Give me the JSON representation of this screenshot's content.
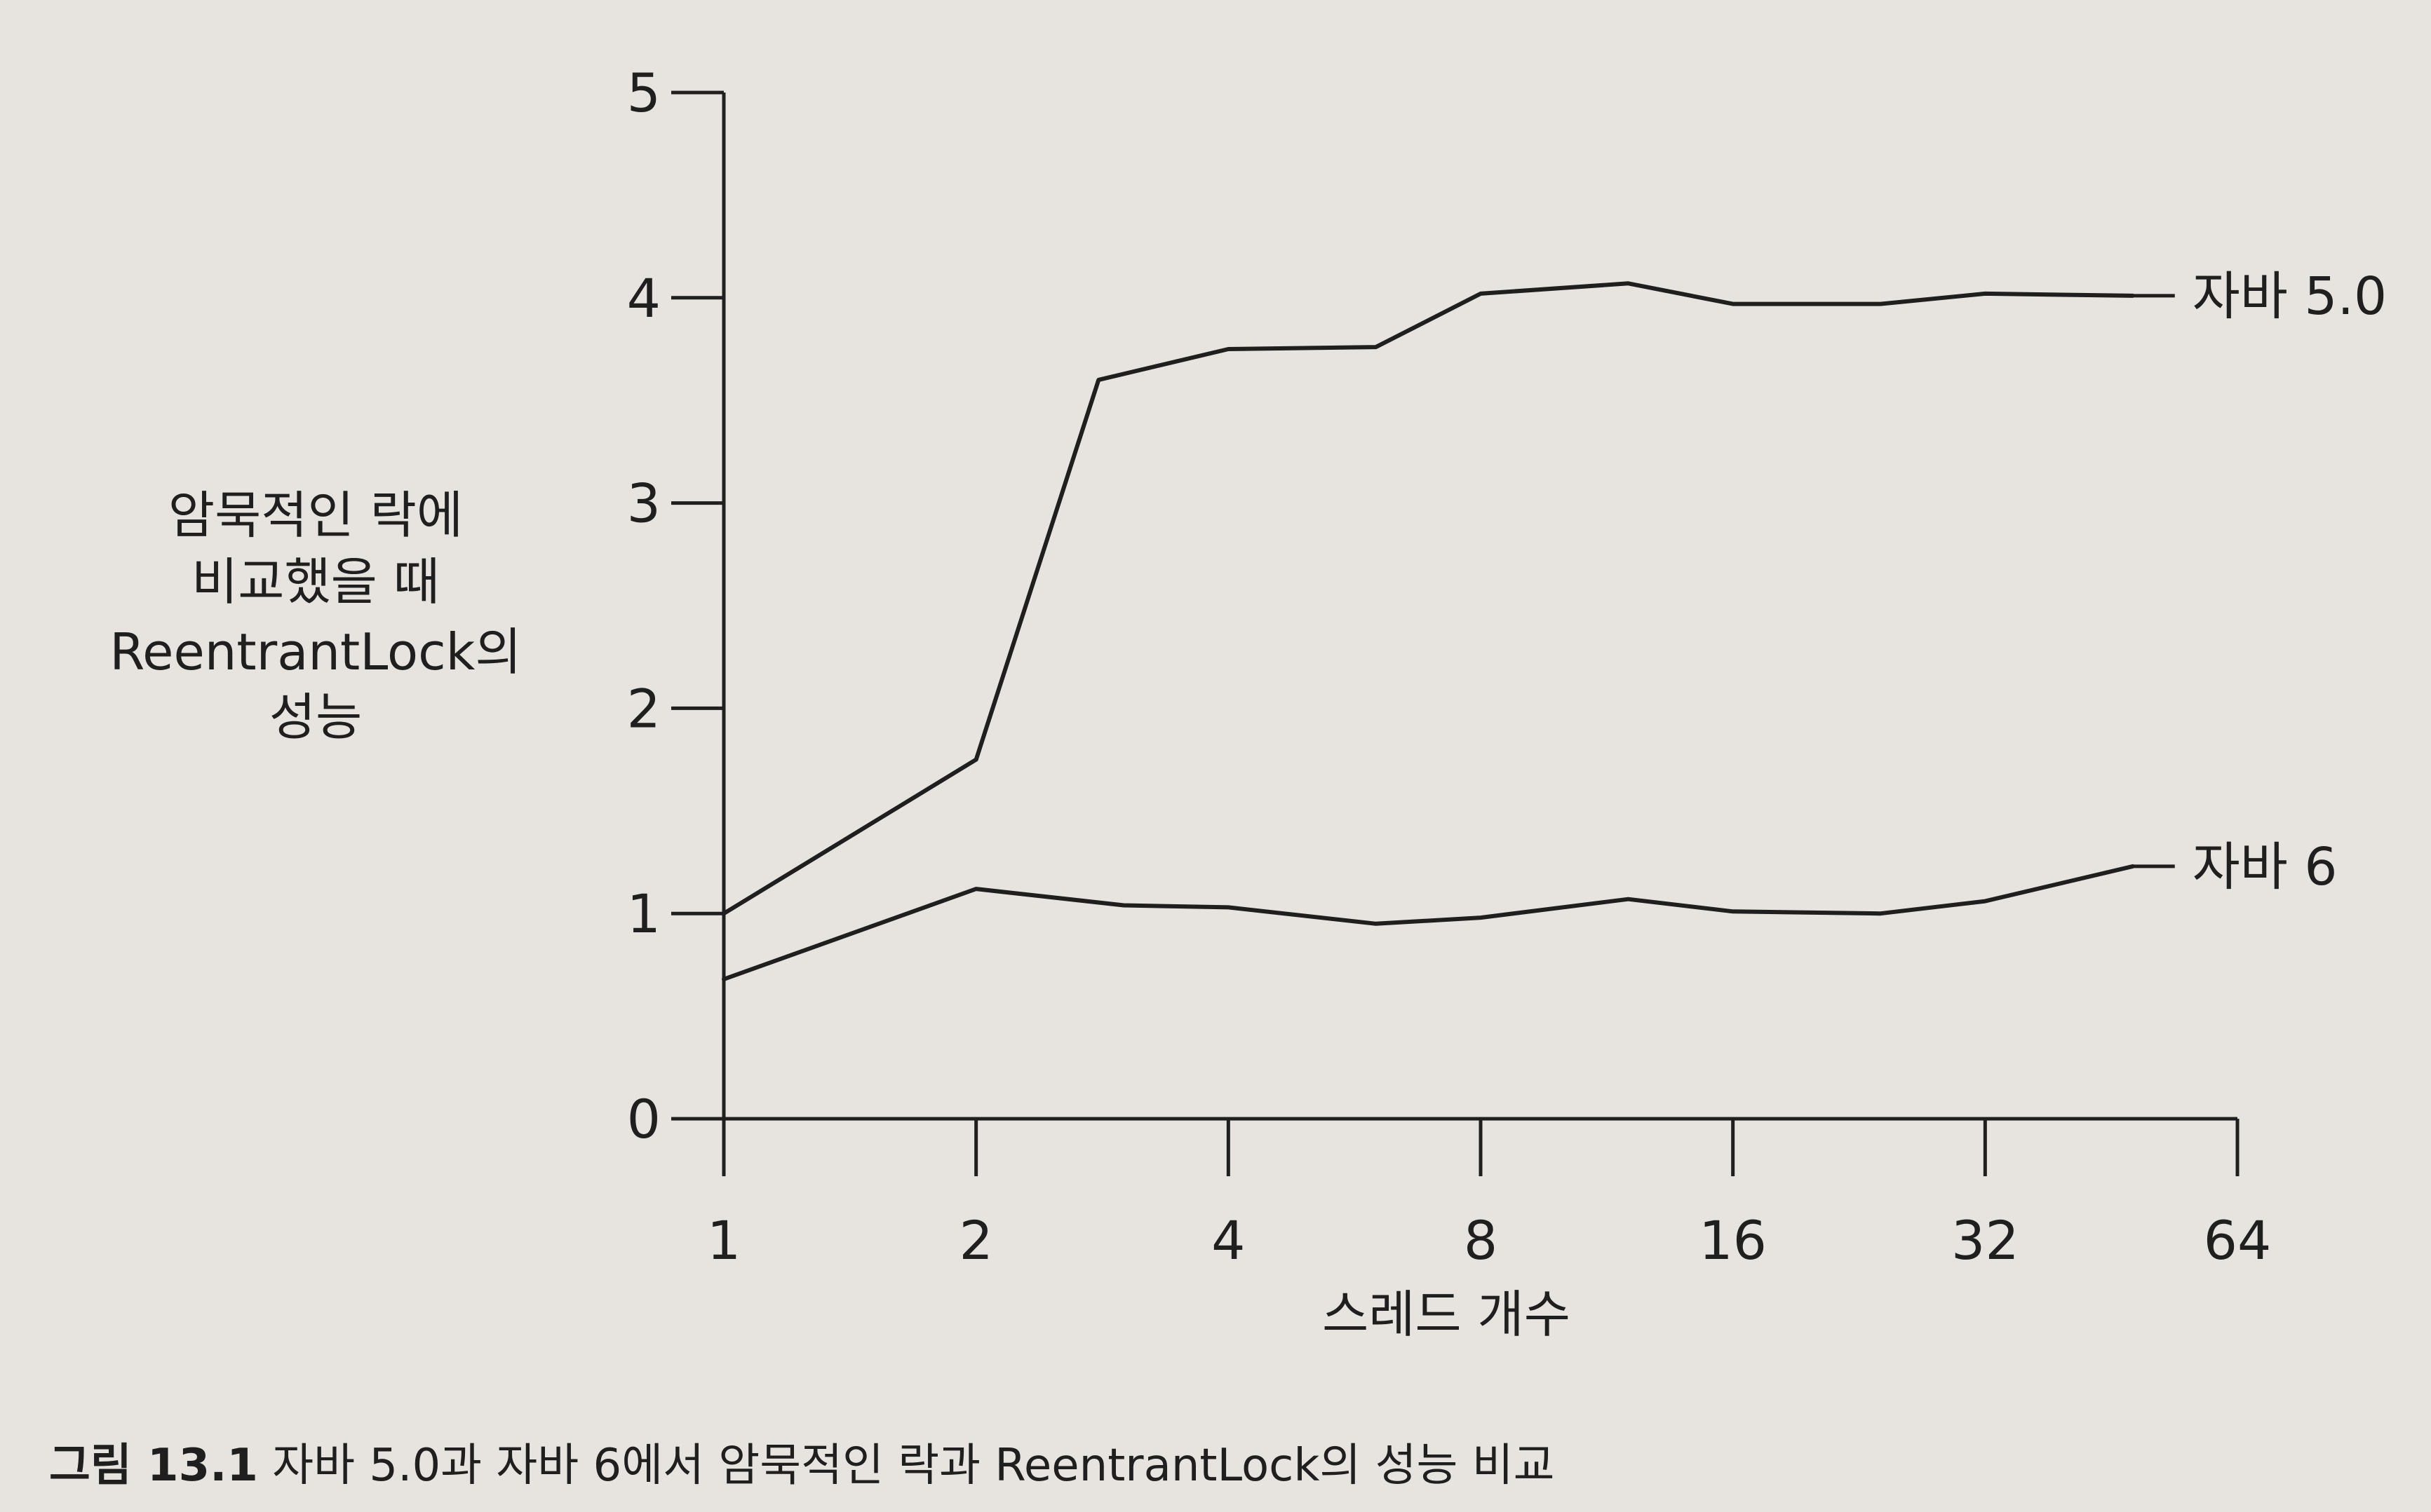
{
  "chart_data": {
    "type": "line",
    "xlabel": "스레드 개수",
    "ylabel_lines": [
      "암묵적인 락에",
      "비교했을 때",
      "ReentrantLock의",
      "성능"
    ],
    "x_scale": "log2",
    "x_ticks": [
      "1",
      "2",
      "4",
      "8",
      "16",
      "32",
      "64"
    ],
    "xlim": [
      1,
      64
    ],
    "y_ticks": [
      "0",
      "1",
      "2",
      "3",
      "4",
      "5"
    ],
    "ylim": [
      0,
      5
    ],
    "grid": false,
    "series": [
      {
        "name": "자바 5.0",
        "x": [
          1,
          2,
          2.8,
          4,
          6,
          8,
          12,
          16,
          24,
          32,
          48
        ],
        "y": [
          1.0,
          1.75,
          3.6,
          3.75,
          3.76,
          4.02,
          4.07,
          3.97,
          3.97,
          4.02,
          4.01
        ]
      },
      {
        "name": "자바 6",
        "x": [
          1,
          2,
          3,
          4,
          6,
          8,
          12,
          16,
          24,
          32,
          48
        ],
        "y": [
          0.68,
          1.12,
          1.04,
          1.03,
          0.95,
          0.98,
          1.07,
          1.01,
          1.0,
          1.06,
          1.23
        ]
      }
    ]
  },
  "caption": {
    "prefix": "그림 13.1",
    "text": " 자바 5.0과 자바 6에서 암묵적인 락과 ReentrantLock의 성능 비교"
  }
}
